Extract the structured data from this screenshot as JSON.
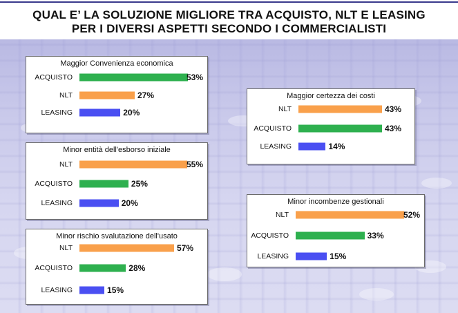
{
  "title_line1": "QUAL E’ LA SOLUZIONE MIGLIORE TRA ACQUISTO, NLT E LEASING",
  "title_line2": "PER I DIVERSI ASPETTI SECONDO I COMMERCIALISTI",
  "colors": {
    "ACQUISTO": "#2eb04f",
    "NLT": "#f9a04b",
    "LEASING": "#4a4ff2"
  },
  "chart_data": [
    {
      "type": "bar",
      "title": "Maggior Convenienza economica",
      "categories": [
        "ACQUISTO",
        "NLT",
        "LEASING"
      ],
      "values": [
        53,
        27,
        20
      ],
      "labels": [
        "53%",
        "27%",
        "20%"
      ],
      "xlim": [
        0,
        53
      ]
    },
    {
      "type": "bar",
      "title": "Minor entità dell'esborso iniziale",
      "categories": [
        "NLT",
        "ACQUISTO",
        "LEASING"
      ],
      "values": [
        55,
        25,
        20
      ],
      "labels": [
        "55%",
        "25%",
        "20%"
      ],
      "xlim": [
        0,
        55
      ]
    },
    {
      "type": "bar",
      "title": "Minor rischio svalutazione dell'usato",
      "categories": [
        "NLT",
        "ACQUISTO",
        "LEASING"
      ],
      "values": [
        57,
        28,
        15
      ],
      "labels": [
        "57%",
        "28%",
        "15%"
      ],
      "xlim": [
        0,
        57
      ]
    },
    {
      "type": "bar",
      "title": "Maggior certezza dei costi",
      "categories": [
        "NLT",
        "ACQUISTO",
        "LEASING"
      ],
      "values": [
        43,
        43,
        14
      ],
      "labels": [
        "43%",
        "43%",
        "14%"
      ],
      "xlim": [
        0,
        57
      ]
    },
    {
      "type": "bar",
      "title": "Minor incombenze gestionali",
      "categories": [
        "NLT",
        "ACQUISTO",
        "LEASING"
      ],
      "values": [
        52,
        33,
        15
      ],
      "labels": [
        "52%",
        "33%",
        "15%"
      ],
      "xlim": [
        0,
        52
      ]
    }
  ]
}
